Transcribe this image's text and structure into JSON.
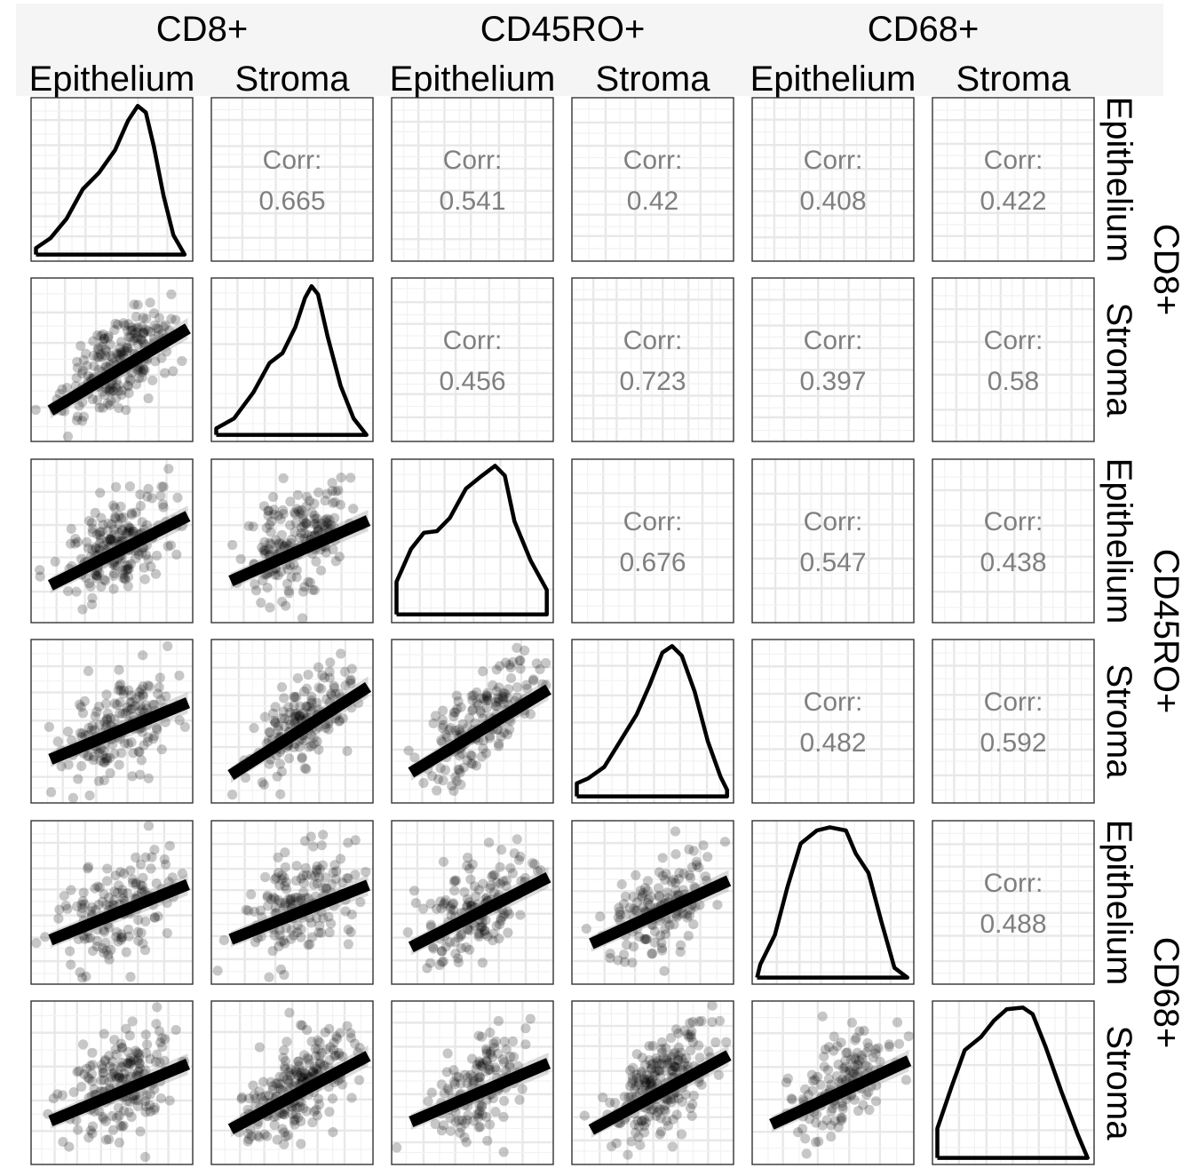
{
  "chart_data": {
    "type": "scatter",
    "subtype": "pairs-matrix",
    "groups": [
      "CD8+",
      "CD45RO+",
      "CD68+"
    ],
    "variables": [
      {
        "group": "CD8+",
        "label": "Epithelium"
      },
      {
        "group": "CD8+",
        "label": "Stroma"
      },
      {
        "group": "CD45RO+",
        "label": "Epithelium"
      },
      {
        "group": "CD45RO+",
        "label": "Stroma"
      },
      {
        "group": "CD68+",
        "label": "Epithelium"
      },
      {
        "group": "CD68+",
        "label": "Stroma"
      }
    ],
    "corr_label": "Corr:",
    "correlations": [
      {
        "row": 0,
        "col": 1,
        "value": "0.665"
      },
      {
        "row": 0,
        "col": 2,
        "value": "0.541"
      },
      {
        "row": 0,
        "col": 3,
        "value": "0.42"
      },
      {
        "row": 0,
        "col": 4,
        "value": "0.408"
      },
      {
        "row": 0,
        "col": 5,
        "value": "0.422"
      },
      {
        "row": 1,
        "col": 2,
        "value": "0.456"
      },
      {
        "row": 1,
        "col": 3,
        "value": "0.723"
      },
      {
        "row": 1,
        "col": 4,
        "value": "0.397"
      },
      {
        "row": 1,
        "col": 5,
        "value": "0.58"
      },
      {
        "row": 2,
        "col": 3,
        "value": "0.676"
      },
      {
        "row": 2,
        "col": 4,
        "value": "0.547"
      },
      {
        "row": 2,
        "col": 5,
        "value": "0.438"
      },
      {
        "row": 3,
        "col": 4,
        "value": "0.482"
      },
      {
        "row": 3,
        "col": 5,
        "value": "0.592"
      },
      {
        "row": 4,
        "col": 5,
        "value": "0.488"
      }
    ],
    "lower_panels": "scatter with linear fit line",
    "diagonal_panels": "density",
    "grid": true,
    "axis_tick_labels": false
  },
  "colors": {
    "points": "#000000",
    "fit_line": "#000000",
    "confidence_band": "#999999",
    "corr_text": "#7f7f7f",
    "gridlines": "#e8e8e8",
    "strip_background": "#f5f5f5"
  }
}
